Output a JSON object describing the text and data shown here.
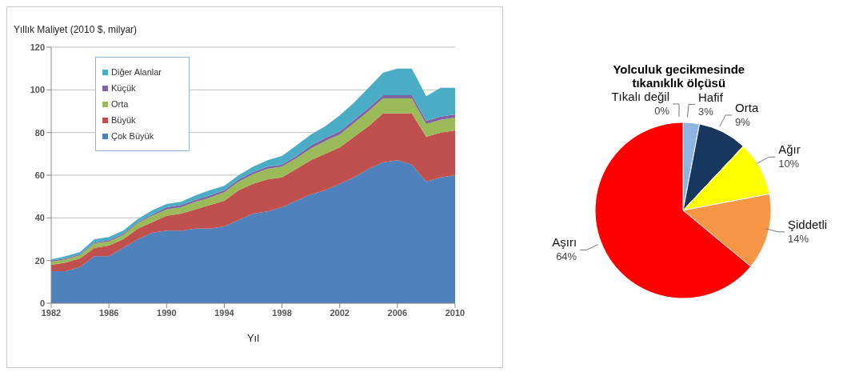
{
  "chart_data": [
    {
      "type": "area",
      "stacked": true,
      "xlabel": "Yıl",
      "ylabel": "Yıllık Maliyet (2010 $, milyar)",
      "x": [
        1982,
        1983,
        1984,
        1985,
        1986,
        1987,
        1988,
        1989,
        1990,
        1991,
        1992,
        1993,
        1994,
        1995,
        1996,
        1997,
        1998,
        1999,
        2000,
        2001,
        2002,
        2003,
        2004,
        2005,
        2006,
        2007,
        2008,
        2009,
        2010
      ],
      "series": [
        {
          "name": "Çok Büyük",
          "color": "#4f81bd",
          "values": [
            15,
            15,
            17,
            22,
            22,
            26,
            30,
            33,
            34,
            34,
            35,
            35,
            36,
            39,
            42,
            43,
            45,
            48,
            51,
            53,
            56,
            59,
            63,
            66,
            67,
            65,
            57,
            59,
            60
          ]
        },
        {
          "name": "Büyük",
          "color": "#c0504d",
          "values": [
            3,
            4,
            4,
            4,
            5,
            4,
            5,
            5,
            7,
            8,
            9,
            11,
            12,
            14,
            14,
            15,
            14,
            15,
            16,
            17,
            17,
            19,
            20,
            23,
            22,
            24,
            21,
            21,
            21
          ]
        },
        {
          "name": "Orta",
          "color": "#9bbb59",
          "values": [
            1.5,
            1.5,
            1.5,
            2,
            2,
            2,
            2.5,
            3,
            3,
            3,
            3.5,
            3.5,
            4,
            4,
            4.5,
            5,
            5,
            5,
            5.5,
            6,
            6,
            6.5,
            7,
            7,
            7,
            7,
            6,
            6,
            6
          ]
        },
        {
          "name": "Küçük",
          "color": "#8064a2",
          "values": [
            0.5,
            0.5,
            0.5,
            0.5,
            0.5,
            0.5,
            0.5,
            0.5,
            1,
            1,
            1,
            1,
            1,
            1,
            1,
            1,
            1,
            1,
            1.5,
            1.5,
            1.5,
            1.5,
            1.5,
            1.5,
            1.5,
            1.5,
            1.5,
            1.5,
            1.5
          ]
        },
        {
          "name": "Diğer Alanlar",
          "color": "#4bacc6",
          "values": [
            0.5,
            1,
            1,
            1.5,
            1.5,
            1.5,
            1.5,
            2,
            1.5,
            1.5,
            2,
            2.5,
            2,
            2,
            2.5,
            3,
            4,
            5,
            5,
            5.5,
            7.5,
            8,
            9.5,
            10.5,
            12.5,
            12.5,
            11.5,
            13.5,
            12.5
          ]
        }
      ],
      "xlim": [
        1982,
        2010
      ],
      "xticks": [
        1982,
        1986,
        1990,
        1994,
        1998,
        2002,
        2006,
        2010
      ],
      "ylim": [
        0,
        120
      ],
      "yticks": [
        0,
        20,
        40,
        60,
        80,
        100,
        120
      ],
      "grid": "y",
      "legend": "top left"
    },
    {
      "type": "pie",
      "title": "Yolculuk gecikmesinde tıkanıklık ölçüsü",
      "categories": [
        "Tıkalı değil",
        "Hafif",
        "Orta",
        "Ağır",
        "Şiddetli",
        "Aşırı"
      ],
      "values": [
        0,
        3,
        9,
        10,
        14,
        64
      ],
      "value_labels": [
        "0%",
        "3%",
        "9%",
        "10%",
        "14%",
        "64%"
      ],
      "colors": [
        "#a6a6a6",
        "#8eb4e3",
        "#17375e",
        "#ffff00",
        "#f79646",
        "#ff0000"
      ]
    }
  ]
}
